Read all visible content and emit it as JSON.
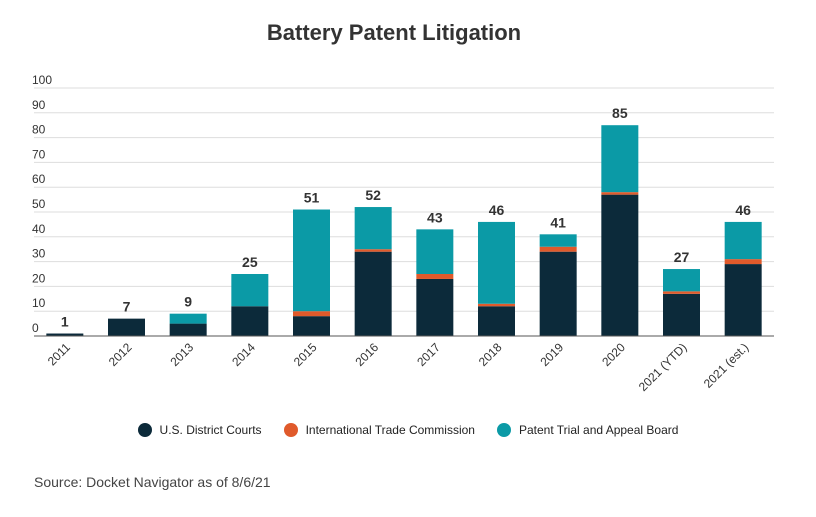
{
  "colors": {
    "district": "#0c2a3a",
    "itc": "#e05a2b",
    "ptab": "#0b9aa6",
    "grid": "#dddddd",
    "text": "#333333"
  },
  "chart_data": {
    "type": "bar",
    "stacked": true,
    "title": "Battery Patent Litigation",
    "xlabel": "",
    "ylabel": "",
    "ylim": [
      0,
      100
    ],
    "yticks": [
      0,
      10,
      20,
      30,
      40,
      50,
      60,
      70,
      80,
      90,
      100
    ],
    "grid": true,
    "legend_position": "bottom",
    "categories": [
      "2011",
      "2012",
      "2013",
      "2014",
      "2015",
      "2016",
      "2017",
      "2018",
      "2019",
      "2020",
      "2021 (YTD)",
      "2021 (est.)"
    ],
    "series": [
      {
        "name": "U.S. District Courts",
        "color": "#0c2a3a",
        "values": [
          1,
          7,
          5,
          12,
          8,
          34,
          23,
          12,
          34,
          57,
          17,
          29
        ]
      },
      {
        "name": "International Trade Commission",
        "color": "#e05a2b",
        "values": [
          0,
          0,
          0,
          0,
          2,
          1,
          2,
          1,
          2,
          1,
          1,
          2
        ]
      },
      {
        "name": "Patent Trial and Appeal Board",
        "color": "#0b9aa6",
        "values": [
          0,
          0,
          4,
          13,
          41,
          17,
          18,
          33,
          5,
          27,
          9,
          15
        ]
      }
    ],
    "totals": [
      1,
      7,
      9,
      25,
      51,
      52,
      43,
      46,
      41,
      85,
      27,
      46
    ]
  },
  "source": "Source: Docket Navigator as of 8/6/21"
}
